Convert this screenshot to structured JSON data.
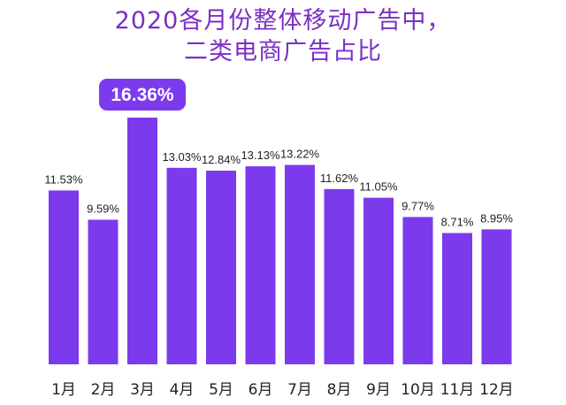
{
  "chart_data": {
    "type": "bar",
    "title": [
      "2020各月份整体移动广告中，",
      "二类电商广告占比"
    ],
    "categories": [
      "1月",
      "2月",
      "3月",
      "4月",
      "5月",
      "6月",
      "7月",
      "8月",
      "9月",
      "10月",
      "11月",
      "12月"
    ],
    "values": [
      11.53,
      9.59,
      16.36,
      13.03,
      12.84,
      13.13,
      13.22,
      11.62,
      11.05,
      9.77,
      8.71,
      8.95
    ],
    "labels": [
      "11.53%",
      "9.59%",
      "16.36%",
      "13.03%",
      "12.84%",
      "13.13%",
      "13.22%",
      "11.62%",
      "11.05%",
      "9.77%",
      "8.71%",
      "8.95%"
    ],
    "highlight_index": 2,
    "xlabel": "",
    "ylabel": "",
    "ylim": [
      0,
      16.36
    ],
    "grid": false,
    "bar_color": "#7c3aed",
    "title_color": "#7b2fc4"
  }
}
